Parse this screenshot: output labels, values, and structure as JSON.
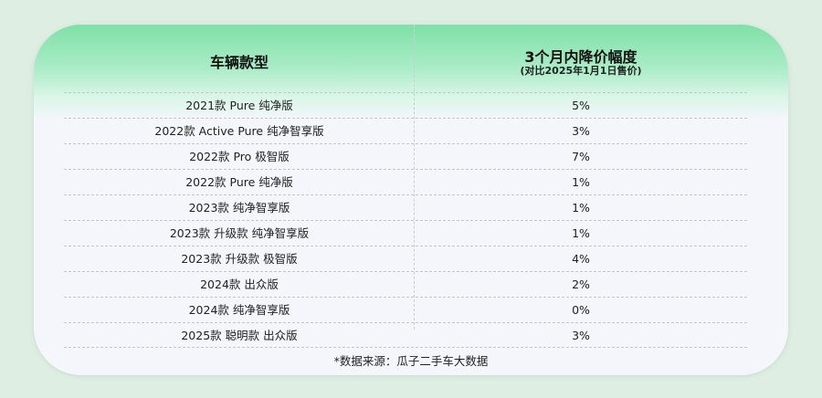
{
  "table": {
    "header": {
      "model": "车辆款型",
      "drop_title": "3个月内降价幅度",
      "drop_subtitle": "(对比2025年1月1日售价)"
    },
    "rows": [
      {
        "model": "2021款 Pure 纯净版",
        "drop": "5%"
      },
      {
        "model": "2022款 Active Pure 纯净智享版",
        "drop": "3%"
      },
      {
        "model": "2022款 Pro 极智版",
        "drop": "7%"
      },
      {
        "model": "2022款 Pure 纯净版",
        "drop": "1%"
      },
      {
        "model": "2023款 纯净智享版",
        "drop": "1%"
      },
      {
        "model": "2023款 升级款 纯净智享版",
        "drop": "1%"
      },
      {
        "model": "2023款 升级款 极智版",
        "drop": "4%"
      },
      {
        "model": "2024款 出众版",
        "drop": "2%"
      },
      {
        "model": "2024款 纯净智享版",
        "drop": "0%"
      },
      {
        "model": "2025款 聪明款 出众版",
        "drop": "3%"
      }
    ],
    "footnote": "*数据来源：瓜子二手车大数据"
  },
  "colors": {
    "background": "#dfeee3",
    "header_green": "#7fe0a6",
    "card": "#f5f6fb"
  }
}
